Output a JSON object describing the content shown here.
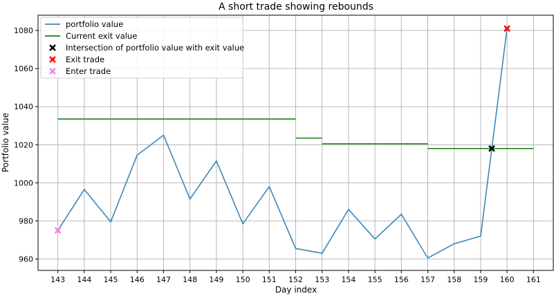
{
  "chart_data": {
    "type": "line",
    "title": "A short trade showing rebounds",
    "xlabel": "Day index",
    "ylabel": "Portfolio value",
    "xlim": [
      142.25,
      161.75
    ],
    "ylim": [
      954,
      1088
    ],
    "x_ticks": [
      143,
      144,
      145,
      146,
      147,
      148,
      149,
      150,
      151,
      152,
      153,
      154,
      155,
      156,
      157,
      158,
      159,
      160,
      161
    ],
    "y_ticks": [
      960,
      980,
      1000,
      1020,
      1040,
      1060,
      1080
    ],
    "grid": true,
    "legend_position": "top-left",
    "series": [
      {
        "name": "portfolio value",
        "kind": "line",
        "color": "#3a86b8",
        "x": [
          143,
          144,
          145,
          146,
          147,
          148,
          149,
          150,
          151,
          152,
          153,
          154,
          155,
          156,
          157,
          158,
          159,
          160
        ],
        "values": [
          975,
          996.5,
          979.5,
          1014.5,
          1025,
          991.5,
          1011.5,
          978.5,
          998,
          965.5,
          963,
          986,
          970.5,
          983.5,
          960.5,
          968,
          972,
          1081
        ]
      },
      {
        "name": "Current exit value",
        "kind": "steps",
        "color": "#138013",
        "segments": [
          {
            "x0": 143,
            "x1": 152,
            "y": 1033.5
          },
          {
            "x0": 152,
            "x1": 153,
            "y": 1023.5
          },
          {
            "x0": 153,
            "x1": 157,
            "y": 1020.5
          },
          {
            "x0": 157,
            "x1": 161,
            "y": 1018
          }
        ]
      },
      {
        "name": "Intersection of portfolio value with exit value",
        "kind": "marker",
        "color": "#000000",
        "x": [
          159.42
        ],
        "values": [
          1018
        ]
      },
      {
        "name": "Exit trade",
        "kind": "marker",
        "color": "#ff0000",
        "x": [
          160
        ],
        "values": [
          1081
        ]
      },
      {
        "name": "Enter trade",
        "kind": "marker",
        "color": "#ee82ee",
        "x": [
          143
        ],
        "values": [
          975
        ]
      }
    ]
  }
}
